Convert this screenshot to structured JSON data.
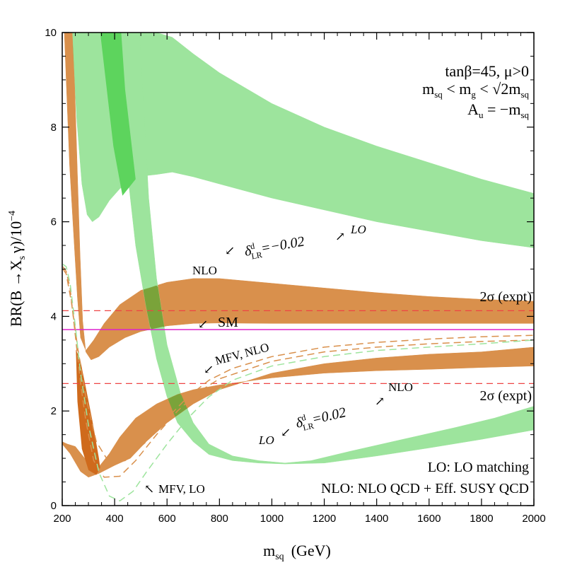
{
  "chart_data": {
    "type": "area",
    "xlabel": "m",
    "xlabel_sub": "sq",
    "xlabel_unit": "(GeV)",
    "ylabel": "BR(B →X",
    "ylabel_sub": "s",
    "ylabel_tail": "γ)/10",
    "ylabel_exp": "−4",
    "xlim": [
      200,
      2000
    ],
    "ylim": [
      0,
      10
    ],
    "xticks": [
      "200",
      "400",
      "600",
      "800",
      "1000",
      "1200",
      "1400",
      "1600",
      "1800",
      "2000"
    ],
    "yticks": [
      "0",
      "2",
      "4",
      "6",
      "8",
      "10"
    ],
    "params": [
      {
        "text": "tanβ=45,  μ>0"
      },
      {
        "text": "m<m<√2m",
        "display": "msq < mg < √2 msq"
      },
      {
        "text": "A = −m",
        "display": "Au = −msq"
      }
    ],
    "param_lines": {
      "line1": "tanβ=45,  μ>0",
      "l2_m1": "m",
      "l2_s1": "sq",
      "l2_lt1": " < m",
      "l2_s2": "g",
      "l2_lt2": " < √2m",
      "l2_s3": "sq",
      "l3_a": "A",
      "l3_s1": "u",
      "l3_eq": " = −m",
      "l3_s2": "sq"
    },
    "reference_lines": {
      "sm_value": 3.72,
      "expt_upper": 4.12,
      "expt_lower": 2.58,
      "sm_label": "SM",
      "expt_label": "2σ (expt)"
    },
    "series": [
      {
        "name": "LO, delta_LR=-0.02",
        "color": "#9de49d",
        "upper": [
          [
            237,
            10
          ],
          [
            265,
            10
          ],
          [
            290,
            10
          ],
          [
            320,
            10
          ],
          [
            360,
            10
          ],
          [
            400,
            10
          ],
          [
            450,
            10
          ],
          [
            500,
            10
          ],
          [
            560,
            10
          ],
          [
            620,
            9.9
          ],
          [
            700,
            9.55
          ],
          [
            800,
            9.15
          ],
          [
            1000,
            8.5
          ],
          [
            1200,
            8.0
          ],
          [
            1400,
            7.6
          ],
          [
            1600,
            7.25
          ],
          [
            1800,
            6.9
          ],
          [
            2000,
            6.6
          ]
        ],
        "lower": [
          [
            237,
            10
          ],
          [
            255,
            8.2
          ],
          [
            275,
            6.8
          ],
          [
            295,
            6.15
          ],
          [
            315,
            6.0
          ],
          [
            340,
            6.1
          ],
          [
            380,
            6.45
          ],
          [
            420,
            6.7
          ],
          [
            480,
            6.95
          ],
          [
            560,
            7.0
          ],
          [
            620,
            7.05
          ],
          [
            700,
            6.95
          ],
          [
            800,
            6.8
          ],
          [
            1000,
            6.5
          ],
          [
            1200,
            6.25
          ],
          [
            1400,
            6.0
          ],
          [
            1600,
            5.8
          ],
          [
            1800,
            5.6
          ],
          [
            2000,
            5.45
          ]
        ]
      },
      {
        "name": "NLO, delta_LR=-0.02",
        "color": "#d9904c",
        "upper": [
          [
            208,
            10
          ],
          [
            215,
            9.0
          ],
          [
            228,
            7.2
          ],
          [
            245,
            5.6
          ],
          [
            258,
            4.4
          ],
          [
            270,
            3.55
          ],
          [
            290,
            3.28
          ],
          [
            320,
            3.5
          ],
          [
            360,
            3.85
          ],
          [
            420,
            4.25
          ],
          [
            500,
            4.55
          ],
          [
            600,
            4.72
          ],
          [
            700,
            4.8
          ],
          [
            800,
            4.8
          ],
          [
            1000,
            4.7
          ],
          [
            1200,
            4.6
          ],
          [
            1400,
            4.5
          ],
          [
            1600,
            4.42
          ],
          [
            1800,
            4.36
          ],
          [
            2000,
            4.32
          ]
        ],
        "lower": [
          [
            238,
            10
          ],
          [
            248,
            8.8
          ],
          [
            258,
            7.0
          ],
          [
            268,
            5.3
          ],
          [
            278,
            3.9
          ],
          [
            290,
            3.25
          ],
          [
            310,
            3.08
          ],
          [
            340,
            3.15
          ],
          [
            380,
            3.35
          ],
          [
            440,
            3.55
          ],
          [
            500,
            3.68
          ],
          [
            600,
            3.8
          ],
          [
            700,
            3.85
          ],
          [
            800,
            3.86
          ],
          [
            1000,
            3.85
          ],
          [
            1200,
            3.85
          ],
          [
            1400,
            3.85
          ],
          [
            1600,
            3.85
          ],
          [
            1800,
            3.85
          ],
          [
            2000,
            3.85
          ]
        ]
      },
      {
        "name": "LO, delta_LR=0.02",
        "color": "#9de49d",
        "upper": [
          [
            395,
            10
          ],
          [
            420,
            8.5
          ],
          [
            450,
            7.0
          ],
          [
            480,
            5.5
          ],
          [
            520,
            4.2
          ],
          [
            560,
            3.1
          ],
          [
            600,
            2.3
          ],
          [
            640,
            1.75
          ],
          [
            700,
            1.35
          ],
          [
            760,
            1.08
          ],
          [
            850,
            0.95
          ],
          [
            950,
            0.9
          ],
          [
            1050,
            0.88
          ],
          [
            1200,
            0.9
          ],
          [
            1400,
            1.05
          ],
          [
            1600,
            1.22
          ],
          [
            1800,
            1.4
          ],
          [
            2000,
            1.6
          ]
        ],
        "lower": [
          [
            495,
            10
          ],
          [
            510,
            8.5
          ],
          [
            530,
            6.5
          ],
          [
            560,
            4.8
          ],
          [
            600,
            3.4
          ],
          [
            650,
            2.4
          ],
          [
            700,
            1.75
          ],
          [
            760,
            1.3
          ],
          [
            850,
            1.05
          ],
          [
            950,
            0.95
          ],
          [
            1050,
            0.9
          ],
          [
            1150,
            0.95
          ],
          [
            1300,
            1.15
          ],
          [
            1500,
            1.4
          ],
          [
            1700,
            1.65
          ],
          [
            1850,
            1.85
          ],
          [
            2000,
            2.1
          ]
        ]
      },
      {
        "name": "NLO, delta_LR=0.02",
        "color": "#d9904c",
        "upper": [
          [
            200,
            1.35
          ],
          [
            220,
            1.3
          ],
          [
            250,
            1.25
          ],
          [
            300,
            0.9
          ],
          [
            340,
            0.82
          ],
          [
            380,
            1.1
          ],
          [
            420,
            1.45
          ],
          [
            480,
            1.85
          ],
          [
            560,
            2.15
          ],
          [
            640,
            2.35
          ],
          [
            700,
            2.45
          ],
          [
            800,
            2.55
          ],
          [
            1000,
            2.7
          ],
          [
            1200,
            2.8
          ],
          [
            1400,
            2.85
          ],
          [
            1600,
            2.88
          ],
          [
            1800,
            2.92
          ],
          [
            2000,
            2.95
          ]
        ],
        "lower": [
          [
            200,
            1.3
          ],
          [
            230,
            1.1
          ],
          [
            270,
            0.72
          ],
          [
            300,
            0.6
          ],
          [
            340,
            0.68
          ],
          [
            400,
            0.85
          ],
          [
            460,
            1.0
          ],
          [
            520,
            1.35
          ],
          [
            600,
            1.75
          ],
          [
            700,
            2.15
          ],
          [
            800,
            2.45
          ],
          [
            1000,
            2.8
          ],
          [
            1200,
            3.0
          ],
          [
            1400,
            3.12
          ],
          [
            1600,
            3.2
          ],
          [
            1800,
            3.25
          ],
          [
            2000,
            3.35
          ]
        ]
      }
    ],
    "overlays": [
      {
        "name": "LO/LO overlap dark green",
        "color": "#5dd45d",
        "polygon": [
          [
            345,
            10
          ],
          [
            425,
            10
          ],
          [
            440,
            8.8
          ],
          [
            480,
            6.9
          ],
          [
            430,
            6.55
          ],
          [
            395,
            7.6
          ],
          [
            370,
            8.8
          ]
        ]
      }
    ],
    "mfv_curves": [
      {
        "name": "MFV, NLO",
        "color": "#d9904c",
        "points": [
          [
            203,
            5.05
          ],
          [
            215,
            4.95
          ],
          [
            230,
            4.6
          ],
          [
            250,
            3.6
          ],
          [
            270,
            2.6
          ],
          [
            290,
            1.8
          ],
          [
            320,
            0.95
          ],
          [
            360,
            0.6
          ],
          [
            420,
            0.62
          ],
          [
            480,
            0.95
          ],
          [
            560,
            1.5
          ],
          [
            640,
            2.0
          ],
          [
            720,
            2.4
          ],
          [
            800,
            2.68
          ],
          [
            1000,
            3.05
          ],
          [
            1200,
            3.25
          ],
          [
            1400,
            3.35
          ],
          [
            1600,
            3.42
          ],
          [
            1800,
            3.47
          ],
          [
            2000,
            3.5
          ]
        ]
      },
      {
        "name": "MFV, NLO upper",
        "color": "#d9904c",
        "points": [
          [
            203,
            5.0
          ],
          [
            215,
            4.9
          ],
          [
            235,
            4.3
          ],
          [
            260,
            3.3
          ],
          [
            290,
            2.3
          ],
          [
            330,
            1.35
          ],
          [
            380,
            0.9
          ],
          [
            440,
            0.95
          ],
          [
            520,
            1.35
          ],
          [
            600,
            1.85
          ],
          [
            680,
            2.3
          ],
          [
            760,
            2.65
          ],
          [
            850,
            2.9
          ],
          [
            1000,
            3.15
          ],
          [
            1200,
            3.35
          ],
          [
            1400,
            3.45
          ],
          [
            1600,
            3.52
          ],
          [
            1800,
            3.57
          ],
          [
            2000,
            3.6
          ]
        ]
      },
      {
        "name": "MFV, LO",
        "color": "#9de49d",
        "points": [
          [
            203,
            5.1
          ],
          [
            215,
            5.05
          ],
          [
            230,
            4.7
          ],
          [
            250,
            3.8
          ],
          [
            270,
            2.8
          ],
          [
            300,
            1.7
          ],
          [
            340,
            0.7
          ],
          [
            380,
            0.2
          ],
          [
            420,
            0.1
          ],
          [
            470,
            0.3
          ],
          [
            520,
            0.7
          ],
          [
            600,
            1.3
          ],
          [
            680,
            1.85
          ],
          [
            760,
            2.3
          ],
          [
            850,
            2.65
          ],
          [
            1000,
            2.95
          ],
          [
            1200,
            3.15
          ],
          [
            1400,
            3.28
          ],
          [
            1600,
            3.35
          ],
          [
            1800,
            3.42
          ],
          [
            2000,
            3.5
          ]
        ]
      }
    ],
    "annotations": {
      "nlo_top": "NLO",
      "lo_top": "LO",
      "delta_top_a": "δ",
      "delta_top_sup": "d",
      "delta_top_sub": "LR",
      "delta_top_val": "=−0.02",
      "mfv_nlo": "MFV, NLO",
      "nlo_bottom": "NLO",
      "lo_bottom": "LO",
      "delta_bot_val": "=0.02",
      "mfv_lo": "MFV, LO",
      "sm": "SM",
      "expt_top": "2σ (expt)",
      "expt_bottom": "2σ (expt)"
    },
    "legend": {
      "lo": "LO: LO matching",
      "nlo": "NLO: NLO  QCD + Eff. SUSY QCD"
    },
    "colors": {
      "green": "#9de49d",
      "orange": "#d9904c",
      "dark_green": "#5dd45d",
      "sm_line": "#dd22cc",
      "expt_line": "#ee4444"
    }
  }
}
